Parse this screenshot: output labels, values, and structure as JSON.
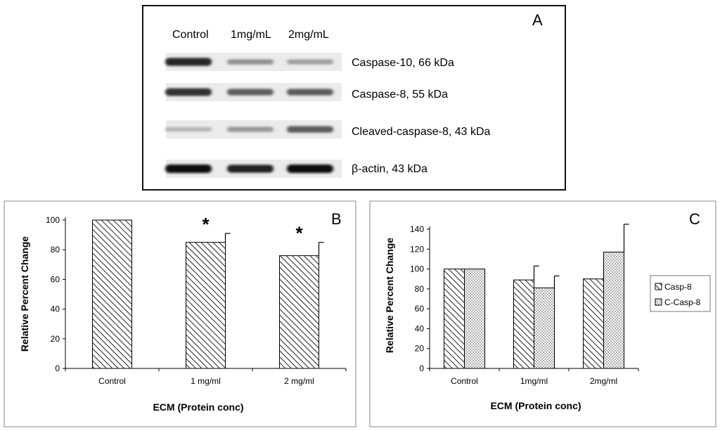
{
  "panel_a": {
    "letter": "A",
    "lane_labels": [
      "Control",
      "1mg/mL",
      "2mg/mL"
    ],
    "blots": [
      {
        "label": "Caspase-10, 66 kDa",
        "lanes": [
          0.88,
          0.35,
          0.28
        ]
      },
      {
        "label": "Caspase-8, 55 kDa",
        "lanes": [
          0.82,
          0.6,
          0.62
        ]
      },
      {
        "label": "Cleaved-caspase-8, 43 kDa",
        "lanes": [
          0.18,
          0.32,
          0.62
        ]
      },
      {
        "label": "β-actin, 43 kDa",
        "lanes": [
          1.0,
          0.9,
          1.0
        ]
      }
    ]
  },
  "chart_data": [
    {
      "panel": "B",
      "type": "bar",
      "title": "",
      "xlabel": "ECM (Protein conc)",
      "ylabel": "Relative Percent Change",
      "categories": [
        "Control",
        "1 mg/ml",
        "2 mg/ml"
      ],
      "values": [
        100,
        85,
        76
      ],
      "errors": [
        0,
        6,
        9
      ],
      "annotations": [
        "",
        "*",
        "*"
      ],
      "ylim": [
        0,
        100
      ],
      "yticks": [
        0,
        20,
        40,
        60,
        80,
        100
      ],
      "grid": false,
      "fill_pattern": "diagonal-hatch"
    },
    {
      "panel": "C",
      "type": "bar",
      "title": "",
      "xlabel": "ECM (Protein conc)",
      "ylabel": "Relative Percent Change",
      "categories": [
        "Control",
        "1mg/ml",
        "2mg/ml"
      ],
      "series": [
        {
          "name": "Casp-8",
          "values": [
            100,
            89,
            90
          ],
          "errors": [
            0,
            14,
            13
          ],
          "fill_pattern": "diagonal-hatch"
        },
        {
          "name": "C-Casp-8",
          "values": [
            100,
            81,
            117
          ],
          "errors": [
            0,
            12,
            28
          ],
          "fill_pattern": "dots"
        }
      ],
      "ylim": [
        0,
        140
      ],
      "yticks": [
        0,
        20,
        40,
        60,
        80,
        100,
        120,
        140
      ],
      "grid": false,
      "legend_position": "right"
    }
  ]
}
